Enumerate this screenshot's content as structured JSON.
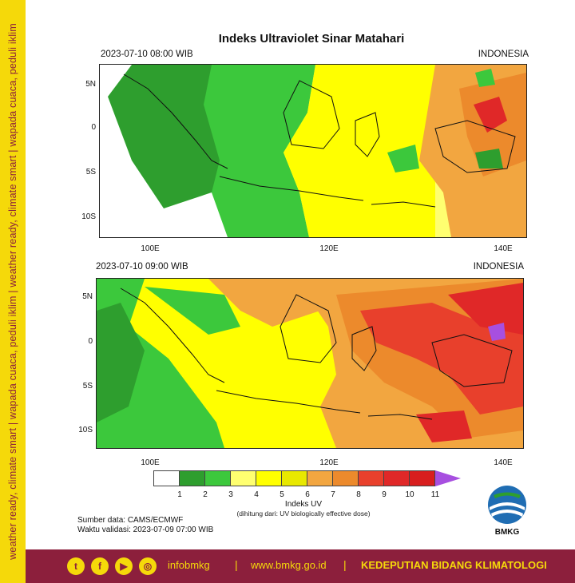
{
  "sidebar": {
    "tagline": "weather ready, climate smart  |  wapada cuaca, peduli iklim  |  weather ready, climate smart  |  wapada cuaca, peduli iklim"
  },
  "title": "Indeks Ultraviolet Sinar Matahari",
  "panels": [
    {
      "time": "2023-07-10  08:00 WIB",
      "region": "INDONESIA"
    },
    {
      "time": "2023-07-10  09:00 WIB",
      "region": "INDONESIA"
    }
  ],
  "lat_labels": [
    "5N",
    "0",
    "5S",
    "10S"
  ],
  "lon_labels": [
    "100E",
    "120E",
    "140E"
  ],
  "legend": {
    "title": "Indeks UV",
    "subtitle": "(dihitung dari: UV biologically effective dose)",
    "ticks": [
      "1",
      "2",
      "3",
      "4",
      "5",
      "6",
      "7",
      "8",
      "9",
      "10",
      "11"
    ],
    "colors": [
      "#ffffff",
      "#2e9e2e",
      "#3cc83c",
      "#ffff70",
      "#ffff00",
      "#e8e800",
      "#f2a640",
      "#ec8a2c",
      "#e8402c",
      "#e02828",
      "#d81e1e"
    ],
    "extend_color": "#a74fe0"
  },
  "source": {
    "line1": "Sumber data: CAMS/ECMWF",
    "line2": "Waktu validasi: 2023-07-09 07:00 WIB"
  },
  "logo": {
    "text": "BMKG"
  },
  "footer": {
    "handle": "infobmkg",
    "website": "www.bmkg.go.id",
    "department": "KEDEPUTIAN BIDANG KLIMATOLOGI",
    "separator": "|",
    "icons": [
      "twitter-icon",
      "facebook-icon",
      "youtube-icon",
      "instagram-icon"
    ]
  }
}
